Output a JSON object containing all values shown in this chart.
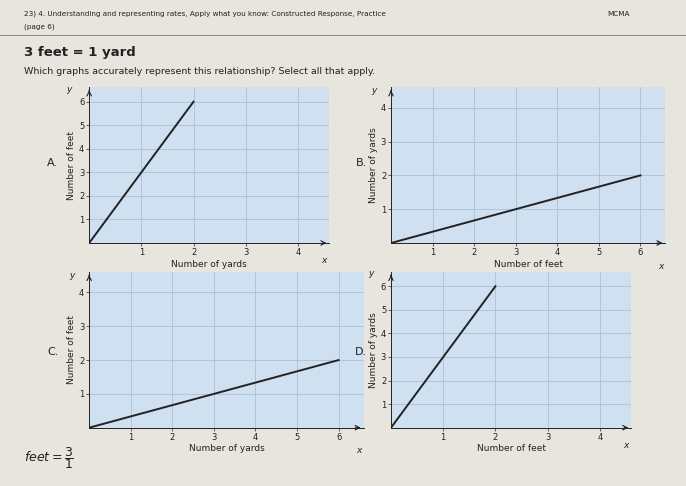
{
  "header_line1": "23) 4. Understanding and representing rates, Apply what you know: Constructed Response, Practice",
  "header_right": "MCMA",
  "header_line2": "(page 6)",
  "bold_text": "3 feet = 1 yard",
  "question_text": "Which graphs accurately represent this relationship? Select all that apply.",
  "footer_handwritten": "feet = 3",
  "footer_denom": "1",
  "graphs": [
    {
      "label": "A.",
      "xlabel": "Number of yards",
      "ylabel": "Number of feet",
      "xlim": [
        0,
        4.6
      ],
      "ylim": [
        0,
        6.6
      ],
      "xticks": [
        1,
        2,
        3,
        4
      ],
      "yticks": [
        1,
        2,
        3,
        4,
        5,
        6
      ],
      "line_x": [
        0,
        2
      ],
      "line_y": [
        0,
        6
      ]
    },
    {
      "label": "B.",
      "xlabel": "Number of feet",
      "ylabel": "Number of yards",
      "xlim": [
        0,
        6.6
      ],
      "ylim": [
        0,
        4.6
      ],
      "xticks": [
        1,
        2,
        3,
        4,
        5,
        6
      ],
      "yticks": [
        1,
        2,
        3,
        4
      ],
      "line_x": [
        0,
        6
      ],
      "line_y": [
        0,
        2
      ]
    },
    {
      "label": "C.",
      "xlabel": "Number of yards",
      "ylabel": "Number of feet",
      "xlim": [
        0,
        6.6
      ],
      "ylim": [
        0,
        4.6
      ],
      "xticks": [
        1,
        2,
        3,
        4,
        5,
        6
      ],
      "yticks": [
        1,
        2,
        3,
        4
      ],
      "line_x": [
        0,
        6
      ],
      "line_y": [
        0,
        2
      ]
    },
    {
      "label": "D.",
      "xlabel": "Number of feet",
      "ylabel": "Number of yards",
      "xlim": [
        0,
        4.6
      ],
      "ylim": [
        0,
        6.6
      ],
      "xticks": [
        1,
        2,
        3,
        4
      ],
      "yticks": [
        1,
        2,
        3,
        4,
        5,
        6
      ],
      "line_x": [
        0,
        2
      ],
      "line_y": [
        0,
        6
      ]
    }
  ],
  "plot_bg": "#cfe0f0",
  "grid_color": "#aabfd8",
  "line_color": "#222222",
  "axis_color": "#222222",
  "text_color": "#222222",
  "page_bg": "#e8e4de"
}
